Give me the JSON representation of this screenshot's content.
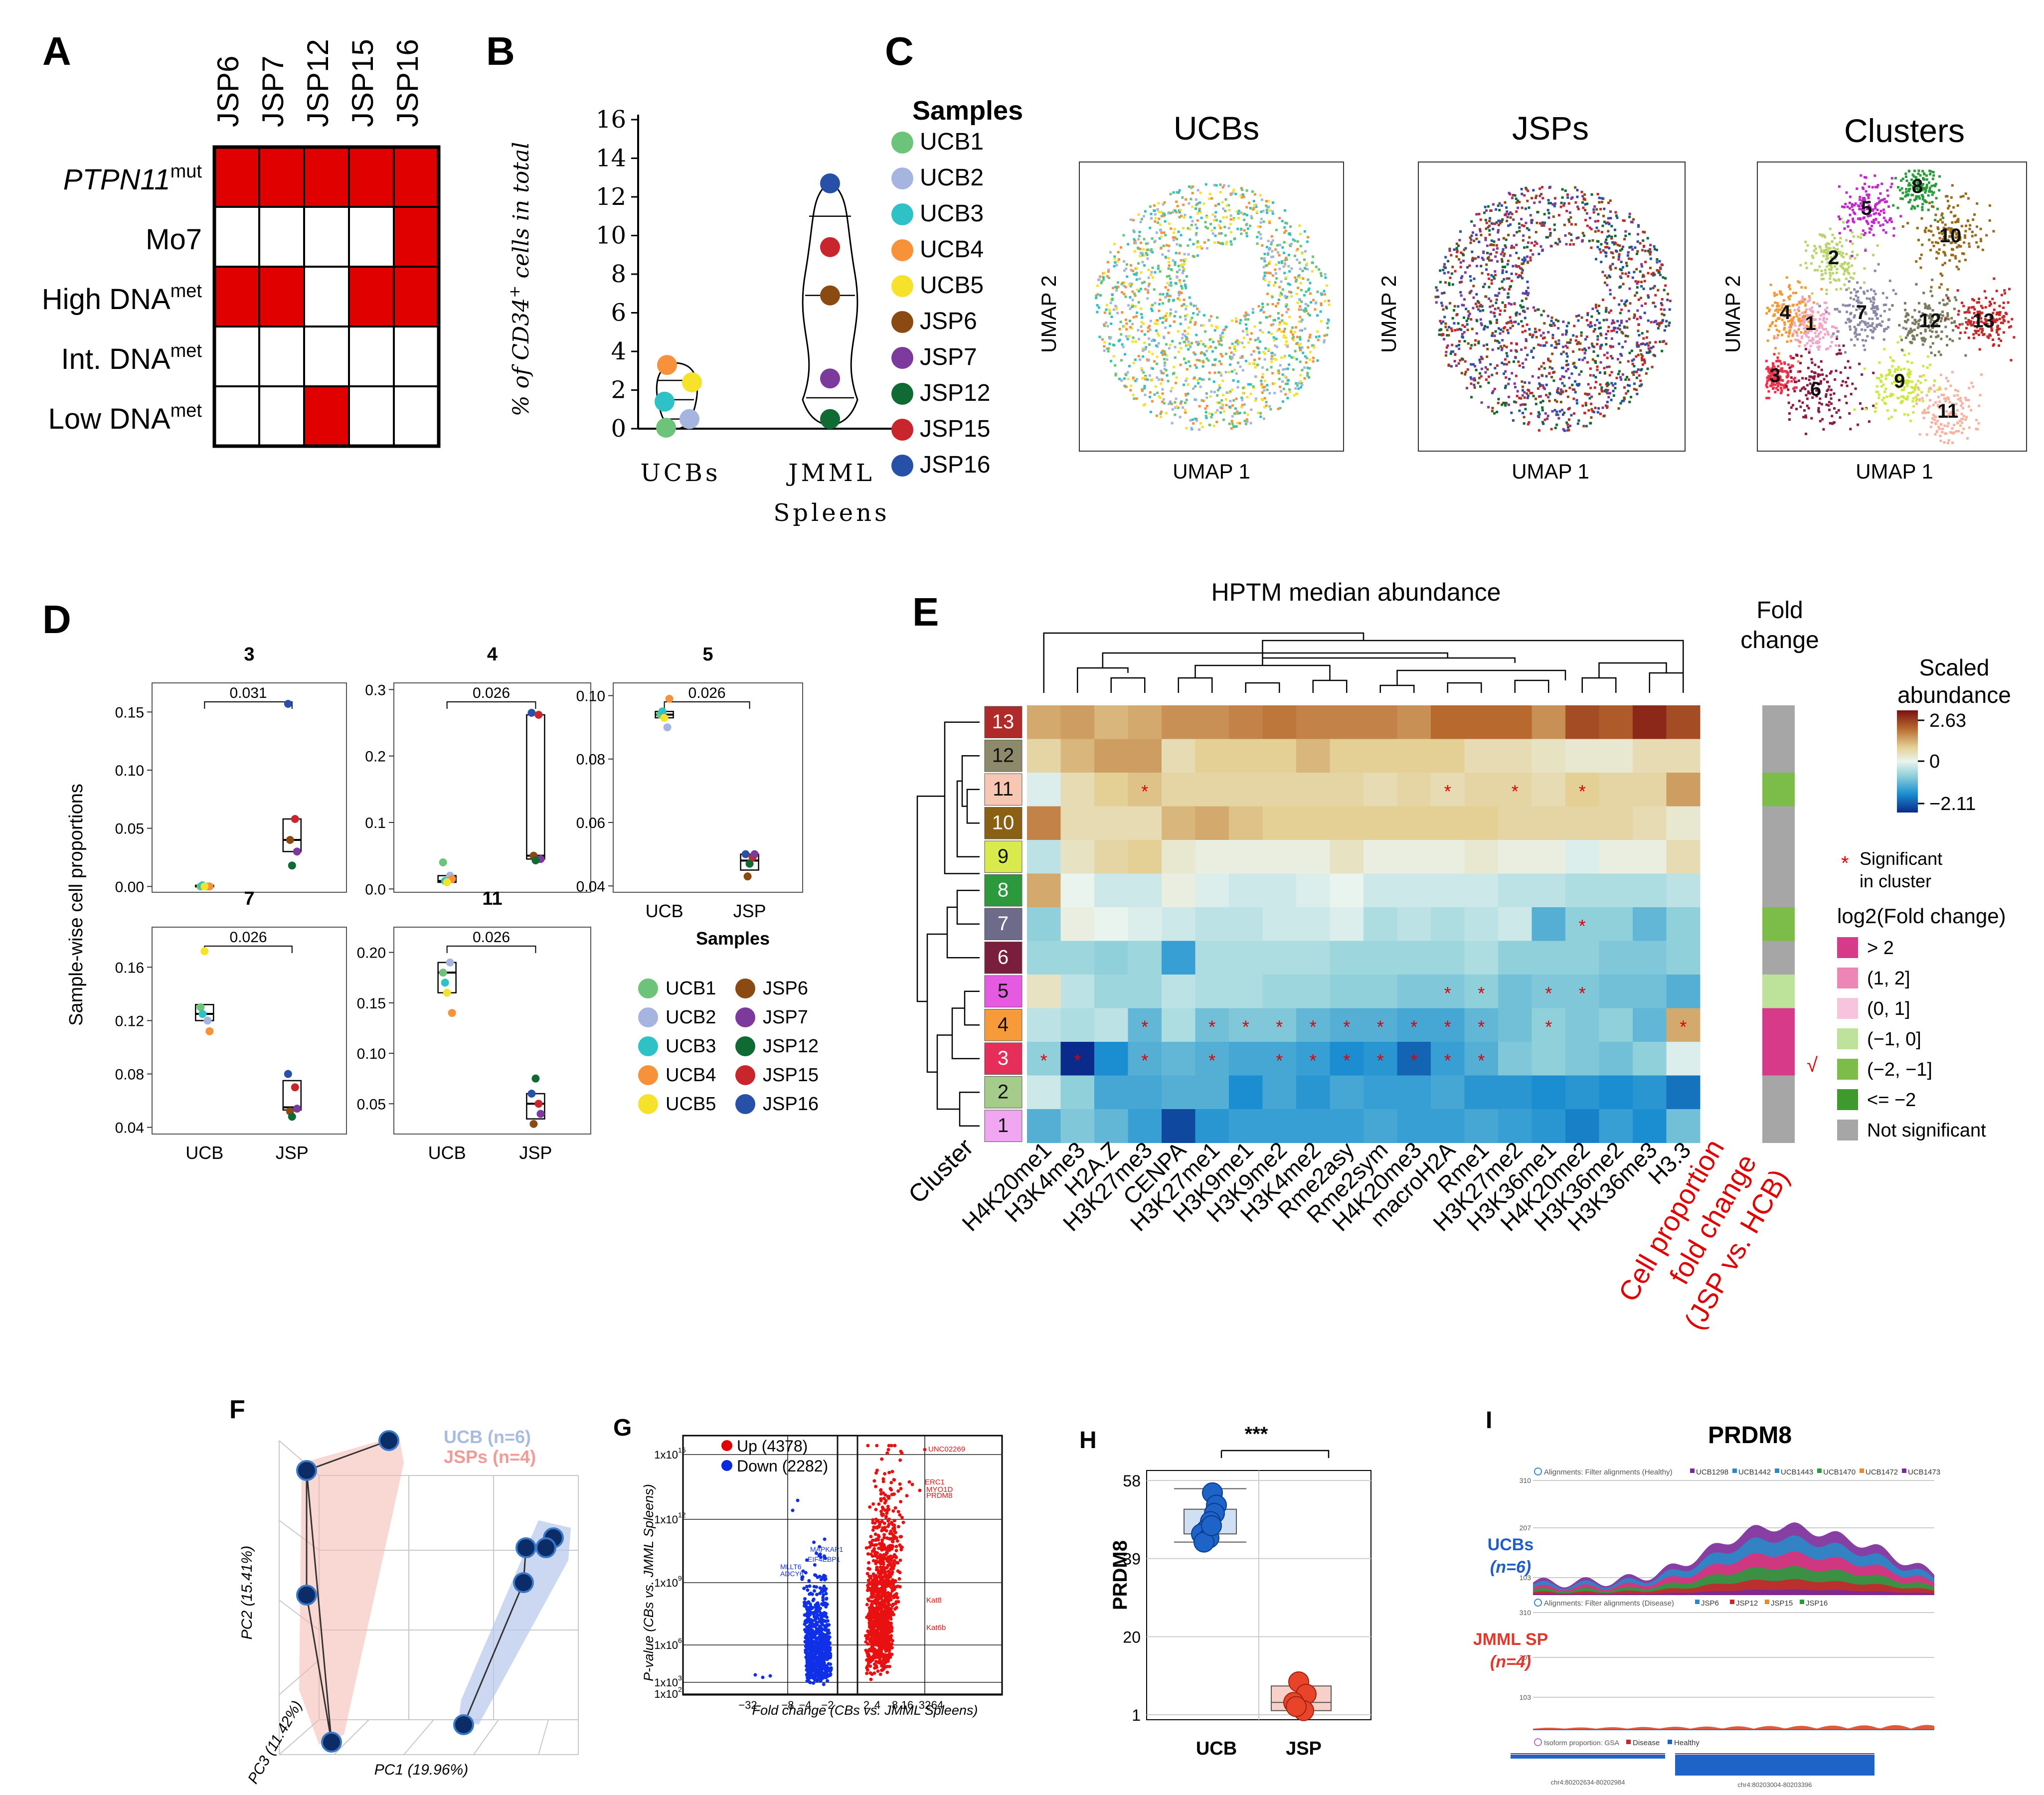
{
  "colors": {
    "red_fill": "#e00000",
    "UCB1": "#6cc37a",
    "UCB2": "#a6b4e0",
    "UCB3": "#2ec2c6",
    "UCB4": "#f7913a",
    "UCB5": "#f6e22b",
    "JSP6": "#8b4a12",
    "JSP7": "#7b3a9c",
    "JSP12": "#0f6a33",
    "JSP15": "#c8262c",
    "JSP16": "#2750a8",
    "sig_gt2": "#d83a8a",
    "sig_1_2": "#ee86b5",
    "sig_0_1": "#f6c4dc",
    "sig_m1_0": "#bde29a",
    "sig_m2_m1": "#7cbd4a",
    "sig_le_m2": "#3e9a2c",
    "not_sig": "#a6a6a6"
  },
  "panels": {
    "A": "A",
    "B": "B",
    "C": "C",
    "D": "D",
    "E": "E",
    "F": "F",
    "G": "G",
    "H": "H",
    "I": "I"
  },
  "panelA": {
    "columns": [
      "JSP6",
      "JSP7",
      "JSP12",
      "JSP15",
      "JSP16"
    ],
    "rows": [
      {
        "label": "PTPN11",
        "sup": "mut",
        "italic": true,
        "cells": [
          1,
          1,
          1,
          1,
          1
        ]
      },
      {
        "label": "Mo7",
        "sup": "",
        "italic": false,
        "cells": [
          0,
          0,
          0,
          0,
          1
        ]
      },
      {
        "label": "High DNA",
        "sup": "met",
        "italic": false,
        "cells": [
          1,
          1,
          0,
          1,
          1
        ]
      },
      {
        "label": "Int. DNA",
        "sup": "met",
        "italic": false,
        "cells": [
          0,
          0,
          0,
          0,
          0
        ]
      },
      {
        "label": "Low DNA",
        "sup": "met",
        "italic": false,
        "cells": [
          0,
          0,
          1,
          0,
          0
        ]
      }
    ]
  },
  "panelB": {
    "ylabel_main": "% of CD34",
    "ylabel_sup": "+",
    "ylabel_tail": " cells in total",
    "yticks": [
      0,
      2,
      4,
      6,
      8,
      10,
      12,
      14,
      16
    ],
    "ylim": [
      0,
      16
    ],
    "group1": "UCBs",
    "group2_line1": "JMML",
    "group2_line2": "Spleens",
    "ucb_points": [
      {
        "s": "UCB4",
        "v": 3.3
      },
      {
        "s": "UCB5",
        "v": 2.4
      },
      {
        "s": "UCB3",
        "v": 1.4
      },
      {
        "s": "UCB1",
        "v": 0.05
      },
      {
        "s": "UCB2",
        "v": 0.5
      }
    ],
    "jsp_points": [
      {
        "s": "JSP16",
        "v": 12.7
      },
      {
        "s": "JSP15",
        "v": 9.4
      },
      {
        "s": "JSP6",
        "v": 6.9
      },
      {
        "s": "JSP7",
        "v": 2.6
      },
      {
        "s": "JSP12",
        "v": 0.5
      }
    ]
  },
  "panelC": {
    "legend_title": "Samples",
    "samples": [
      "UCB1",
      "UCB2",
      "UCB3",
      "UCB4",
      "UCB5",
      "JSP6",
      "JSP7",
      "JSP12",
      "JSP15",
      "JSP16"
    ],
    "umap_titles": [
      "UCBs",
      "JSPs",
      "Clusters"
    ],
    "xlabel": "UMAP 1",
    "ylabel": "UMAP 2",
    "cluster_labels": [
      "1",
      "2",
      "3",
      "4",
      "5",
      "6",
      "7",
      "8",
      "9",
      "10",
      "11",
      "12",
      "13"
    ]
  },
  "panelD": {
    "ylabel": "Sample-wise cell proportions",
    "xcats": [
      "UCB",
      "JSP"
    ],
    "legend_title": "Samples",
    "plots": [
      {
        "title": "3",
        "p": "0.031",
        "ylim": [
          -0.005,
          0.175
        ],
        "yticks": [
          "0.00",
          "0.05",
          "0.10",
          "0.15"
        ],
        "tickvals": [
          0,
          0.05,
          0.1,
          0.15
        ],
        "ucb": [
          0.0,
          0.0,
          0.001,
          0.0,
          0.0
        ],
        "jsp": [
          0.157,
          0.058,
          0.04,
          0.03,
          0.018
        ],
        "ucb_box": [
          0,
          0,
          0.001
        ],
        "jsp_box": [
          0.03,
          0.04,
          0.058
        ]
      },
      {
        "title": "4",
        "p": "0.026",
        "ylim": [
          -0.005,
          0.31
        ],
        "yticks": [
          "0.0",
          "0.1",
          "0.2",
          "0.3"
        ],
        "tickvals": [
          0,
          0.1,
          0.2,
          0.3
        ],
        "ucb": [
          0.04,
          0.02,
          0.012,
          0.015,
          0.01
        ],
        "jsp": [
          0.265,
          0.262,
          0.05,
          0.045,
          0.043
        ],
        "ucb_box": [
          0.01,
          0.012,
          0.02
        ],
        "jsp_box": [
          0.045,
          0.05,
          0.262
        ]
      },
      {
        "title": "5",
        "p": "0.026",
        "ylim": [
          0.038,
          0.104
        ],
        "yticks": [
          "0.04",
          "0.06",
          "0.08",
          "0.10"
        ],
        "tickvals": [
          0.04,
          0.06,
          0.08,
          0.1
        ],
        "ucb": [
          0.094,
          0.09,
          0.095,
          0.099,
          0.093
        ],
        "jsp": [
          0.05,
          0.049,
          0.043,
          0.05,
          0.047
        ],
        "ucb_box": [
          0.093,
          0.094,
          0.095
        ],
        "jsp_box": [
          0.045,
          0.048,
          0.05
        ]
      },
      {
        "title": "7",
        "p": "0.026",
        "ylim": [
          0.035,
          0.19
        ],
        "yticks": [
          "0.04",
          "0.08",
          "0.12",
          "0.16"
        ],
        "tickvals": [
          0.04,
          0.08,
          0.12,
          0.16
        ],
        "ucb": [
          0.13,
          0.12,
          0.125,
          0.112,
          0.172
        ],
        "jsp": [
          0.08,
          0.07,
          0.052,
          0.054,
          0.048
        ],
        "ucb_box": [
          0.12,
          0.125,
          0.132
        ],
        "jsp_box": [
          0.053,
          0.055,
          0.075
        ]
      },
      {
        "title": "11",
        "p": "0.026",
        "ylim": [
          0.02,
          0.225
        ],
        "yticks": [
          "0.05",
          "0.10",
          "0.15",
          "0.20"
        ],
        "tickvals": [
          0.05,
          0.1,
          0.15,
          0.2
        ],
        "ucb": [
          0.18,
          0.19,
          0.17,
          0.14,
          0.16
        ],
        "jsp": [
          0.06,
          0.05,
          0.03,
          0.04,
          0.075
        ],
        "ucb_box": [
          0.16,
          0.18,
          0.19
        ],
        "jsp_box": [
          0.035,
          0.05,
          0.06
        ]
      }
    ]
  },
  "panelE": {
    "title": "HPTM median abundance",
    "foldchange_title_line1": "Fold",
    "foldchange_title_line2": "change",
    "scale_title_line1": "Scaled",
    "scale_title_line2": "abundance",
    "scale_max": "2.63",
    "scale_mid": "0",
    "scale_min": "−2.11",
    "cluster_label": "Cluster",
    "cluster_order": [
      "13",
      "12",
      "11",
      "10",
      "9",
      "8",
      "7",
      "6",
      "5",
      "4",
      "3",
      "2",
      "1"
    ],
    "cluster_colors": [
      "#b02a2a",
      "#8c8a6a",
      "#f8c7b4",
      "#8a6014",
      "#d8ea4c",
      "#2c9a3c",
      "#6e6a8a",
      "#7a1e3e",
      "#e55ae0",
      "#f79a3a",
      "#e52e5a",
      "#a6cc8c",
      "#f0a6f0"
    ],
    "columns": [
      "H4K20me1",
      "H3K4me3",
      "H2A.Z",
      "H3K27me3",
      "CENPA",
      "H3K27me1",
      "H3K9me1",
      "H3K9me2",
      "H3K4me2",
      "Rme2asy",
      "Rme2sym",
      "H4K20me3",
      "macroH2A",
      "Rme1",
      "H3K27me2",
      "H3K36me1",
      "H4K20me2",
      "H3K36me2",
      "H3K36me3",
      "H3.3"
    ],
    "values": [
      [
        0.9,
        1.0,
        0.8,
        0.9,
        1.1,
        1.1,
        1.2,
        1.3,
        1.2,
        1.2,
        1.2,
        1.1,
        1.4,
        1.4,
        1.4,
        1.1,
        1.8,
        1.6,
        2.3,
        1.8
      ],
      [
        0.5,
        0.8,
        1.0,
        1.0,
        0.4,
        0.6,
        0.6,
        0.6,
        0.8,
        0.6,
        0.6,
        0.6,
        0.6,
        0.4,
        0.4,
        0.3,
        0.2,
        0.2,
        0.4,
        0.4
      ],
      [
        -0.1,
        0.4,
        0.6,
        0.7,
        0.5,
        0.5,
        0.5,
        0.5,
        0.5,
        0.5,
        0.4,
        0.5,
        0.4,
        0.5,
        0.5,
        0.4,
        0.6,
        0.5,
        0.5,
        1.0
      ],
      [
        1.2,
        0.4,
        0.4,
        0.4,
        0.8,
        0.9,
        0.7,
        0.6,
        0.6,
        0.6,
        0.6,
        0.6,
        0.6,
        0.6,
        0.5,
        0.5,
        0.5,
        0.5,
        0.4,
        0.2
      ],
      [
        -0.3,
        0.3,
        0.5,
        0.6,
        0.2,
        0.1,
        0.1,
        0.1,
        0.1,
        0.3,
        0.1,
        0.1,
        0.1,
        0.2,
        0.1,
        0.1,
        -0.1,
        0.1,
        0.1,
        0.4
      ],
      [
        0.9,
        0.0,
        -0.2,
        -0.2,
        0.1,
        -0.1,
        -0.2,
        -0.2,
        -0.1,
        0.0,
        -0.2,
        -0.2,
        -0.2,
        -0.2,
        -0.3,
        -0.3,
        -0.4,
        -0.4,
        -0.4,
        -0.3
      ],
      [
        -0.6,
        0.1,
        0.0,
        -0.1,
        -0.2,
        -0.3,
        -0.3,
        -0.2,
        -0.2,
        -0.1,
        -0.4,
        -0.3,
        -0.4,
        -0.3,
        -0.2,
        -1.0,
        -0.6,
        -0.6,
        -0.9,
        -0.6
      ],
      [
        -0.5,
        -0.5,
        -0.6,
        -0.5,
        -1.2,
        -0.4,
        -0.4,
        -0.4,
        -0.4,
        -0.5,
        -0.5,
        -0.5,
        -0.5,
        -0.4,
        -0.6,
        -0.6,
        -0.6,
        -0.7,
        -0.7,
        -0.6
      ],
      [
        0.3,
        -0.3,
        -0.5,
        -0.5,
        -0.3,
        -0.4,
        -0.4,
        -0.5,
        -0.5,
        -0.6,
        -0.6,
        -0.7,
        -0.7,
        -0.6,
        -0.8,
        -0.7,
        -0.7,
        -0.8,
        -0.8,
        -1.0
      ],
      [
        -0.3,
        -0.4,
        -0.3,
        -0.9,
        -0.4,
        -0.8,
        -0.7,
        -0.7,
        -0.9,
        -1.0,
        -1.0,
        -1.1,
        -1.1,
        -0.9,
        -0.8,
        -0.6,
        -0.7,
        -0.6,
        -0.9,
        0.9
      ],
      [
        -0.6,
        -2.1,
        -1.4,
        -1.0,
        -0.9,
        -1.0,
        -1.1,
        -1.1,
        -1.2,
        -1.4,
        -1.3,
        -1.7,
        -1.2,
        -1.0,
        -0.7,
        -0.6,
        -0.7,
        -0.8,
        -0.6,
        -0.1
      ],
      [
        -0.2,
        -0.6,
        -1.1,
        -1.1,
        -1.0,
        -1.0,
        -1.4,
        -1.1,
        -1.3,
        -1.1,
        -1.2,
        -1.2,
        -1.1,
        -1.3,
        -1.3,
        -1.4,
        -1.3,
        -1.4,
        -1.3,
        -1.6
      ],
      [
        -1.0,
        -0.7,
        -0.9,
        -1.2,
        -1.9,
        -1.3,
        -1.2,
        -1.2,
        -1.2,
        -1.2,
        -1.1,
        -1.2,
        -1.2,
        -1.1,
        -1.2,
        -1.3,
        -1.5,
        -1.2,
        -1.4,
        -0.8
      ]
    ],
    "stars": [
      [
        2,
        3
      ],
      [
        2,
        12
      ],
      [
        2,
        14
      ],
      [
        2,
        16
      ],
      [
        6,
        16
      ],
      [
        8,
        12
      ],
      [
        8,
        13
      ],
      [
        8,
        15
      ],
      [
        8,
        16
      ],
      [
        9,
        3
      ],
      [
        9,
        5
      ],
      [
        9,
        6
      ],
      [
        9,
        7
      ],
      [
        9,
        8
      ],
      [
        9,
        9
      ],
      [
        9,
        10
      ],
      [
        9,
        11
      ],
      [
        9,
        12
      ],
      [
        9,
        13
      ],
      [
        9,
        15
      ],
      [
        9,
        19
      ],
      [
        10,
        0
      ],
      [
        10,
        1
      ],
      [
        10,
        3
      ],
      [
        10,
        5
      ],
      [
        10,
        7
      ],
      [
        10,
        8
      ],
      [
        10,
        9
      ],
      [
        10,
        10
      ],
      [
        10,
        11
      ],
      [
        10,
        12
      ],
      [
        10,
        13
      ]
    ],
    "fold_sig": [
      "not_sig",
      "not_sig",
      "sig_m2_m1",
      "not_sig",
      "not_sig",
      "not_sig",
      "sig_m2_m1",
      "not_sig",
      "sig_m1_0",
      "sig_gt2",
      "sig_gt2",
      "not_sig",
      "not_sig"
    ],
    "sig_star": "*",
    "sig_text_line1": "Significant",
    "sig_text_line2": "in cluster",
    "legend_title": "log2(Fold change)",
    "legend": [
      {
        "key": "sig_gt2",
        "label": "> 2"
      },
      {
        "key": "sig_1_2",
        "label": "(1, 2]"
      },
      {
        "key": "sig_0_1",
        "label": "(0, 1]"
      },
      {
        "key": "sig_m1_0",
        "label": "(−1, 0]"
      },
      {
        "key": "sig_m2_m1",
        "label": "(−2, −1]"
      },
      {
        "key": "sig_le_m2",
        "label": "<= −2"
      },
      {
        "key": "not_sig",
        "label": "Not significant"
      }
    ],
    "red_label_lines": [
      "Cell proportion",
      "fold change",
      "(JSP vs. HCB)"
    ]
  },
  "panelF": {
    "legend_ucb": "UCB (n=6)",
    "legend_jsp": "JSPs (n=4)",
    "pc1": "PC1 (19.96%)",
    "pc2": "PC2 (15.41%)",
    "pc3": "PC3 (11.42%)"
  },
  "panelG": {
    "legend_up": "Up (4378)",
    "legend_down": "Down (2282)",
    "ylabel": "P-value (CBs vs. JMML Spleens)",
    "xlabel": "Fold change (CBs vs. JMML Spleens)",
    "yticks": [
      "1x10",
      "1x10",
      "1x10",
      "1x10",
      "1x10",
      "1x10"
    ],
    "ytick_exps": [
      "15",
      "12",
      "9",
      "6",
      "3",
      "2"
    ],
    "xticks": [
      "−32",
      "−8",
      "−4",
      "−2",
      "2",
      "4",
      "8",
      "16",
      "32",
      "64"
    ],
    "gene_labels_up": [
      "UNC02269",
      "ERC1",
      "MYO1D",
      "PRDM8",
      "Kat8",
      "Kat6b"
    ],
    "gene_labels_down": [
      "MAPKAP1",
      "EIF4EBP1",
      "MLLT6",
      "ADCY6"
    ]
  },
  "panelH": {
    "sig": "***",
    "ylabel": "PRDM8",
    "yticks": [
      "58",
      "39",
      "20",
      "1"
    ],
    "xcats": [
      "UCB",
      "JSP"
    ],
    "ucb_points": [
      55,
      52,
      50,
      48,
      46,
      45,
      44,
      43,
      47
    ],
    "jsp_points": [
      9,
      6,
      4,
      2,
      3
    ]
  },
  "panelI": {
    "title": "PRDM8",
    "track1_header": "Alignments: Filter alignments (Healthy)",
    "track1_samples": [
      "UCB1298",
      "UCB1442",
      "UCB1443",
      "UCB1470",
      "UCB1472",
      "UCB1473"
    ],
    "track2_header": "Alignments: Filter alignments (Disease)",
    "track2_samples": [
      "JSP6",
      "JSP12",
      "JSP15",
      "JSP16"
    ],
    "ticks_top": [
      "310",
      "207",
      "103"
    ],
    "ticks_bottom": [
      "310",
      "207",
      "103"
    ],
    "ucb_label": "UCBs",
    "ucb_n": "(n=6)",
    "jsp_label": "JMML SP",
    "jsp_n": "(n=4)",
    "isoform_label": "Isoform proportion: GSA",
    "isoform_disease": "Disease",
    "isoform_healthy": "Healthy",
    "coord1": "chr4:80202634-80202984",
    "coord2": "chr4:80203004-80203396"
  }
}
